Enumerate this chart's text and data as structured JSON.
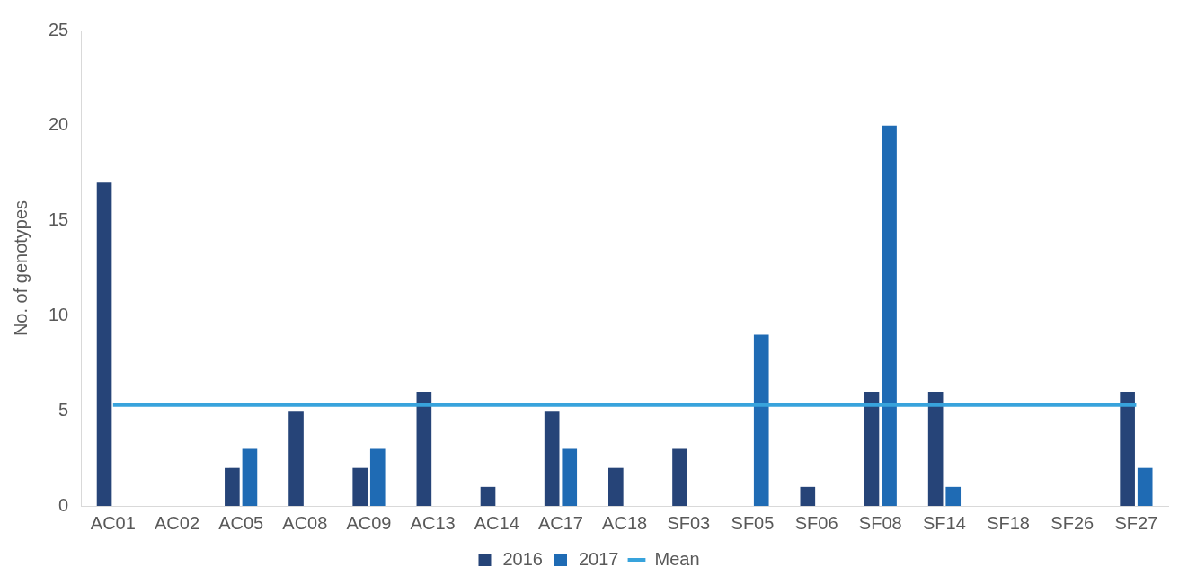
{
  "chart_data": {
    "type": "bar",
    "ylabel": "No. of genotypes",
    "categories": [
      "AC01",
      "AC02",
      "AC05",
      "AC08",
      "AC09",
      "AC13",
      "AC14",
      "AC17",
      "AC18",
      "SF03",
      "SF05",
      "SF06",
      "SF08",
      "SF14",
      "SF18",
      "SF26",
      "SF27"
    ],
    "series": [
      {
        "name": "2016",
        "color": "#264478",
        "values": [
          17,
          0,
          2,
          5,
          2,
          6,
          1,
          5,
          2,
          3,
          0,
          1,
          6,
          6,
          0,
          0,
          6
        ]
      },
      {
        "name": "2017",
        "color": "#1f6bb4",
        "values": [
          0,
          0,
          3,
          0,
          3,
          0,
          0,
          3,
          0,
          0,
          9,
          0,
          20,
          1,
          0,
          0,
          2
        ]
      },
      {
        "name": "Mean",
        "type": "line",
        "color": "#38a3dc",
        "marker": "none",
        "values": [
          5.3,
          5.3,
          5.3,
          5.3,
          5.3,
          5.3,
          5.3,
          5.3,
          5.3,
          5.3,
          5.3,
          5.3,
          5.3,
          5.3,
          5.3,
          5.3,
          5.3
        ]
      }
    ],
    "ylim": [
      0,
      25
    ],
    "yticks": [
      0,
      5,
      10,
      15,
      20,
      25
    ],
    "grid": false,
    "legend": "bottom"
  }
}
